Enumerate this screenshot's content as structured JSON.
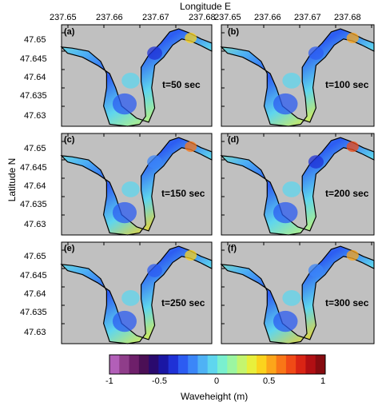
{
  "figure": {
    "top_axis_title": "Longitude E",
    "left_axis_title": "Latitude N",
    "longitude_ticks": [
      "237.65",
      "237.66",
      "237.67",
      "237.68"
    ],
    "latitude_ticks": [
      "47.65",
      "47.645",
      "47.64",
      "47.635",
      "47.63"
    ],
    "land_color": "#c0c0c0",
    "panels": [
      {
        "tag": "(a)",
        "time_label": "t=50 sec"
      },
      {
        "tag": "(b)",
        "time_label": "t=100 sec"
      },
      {
        "tag": "(c)",
        "time_label": "t=150 sec"
      },
      {
        "tag": "(d)",
        "time_label": "t=200 sec"
      },
      {
        "tag": "(e)",
        "time_label": "t=250 sec"
      },
      {
        "tag": "(f)",
        "time_label": "t=300 sec"
      }
    ],
    "colorbar": {
      "title": "Waveheight (m)",
      "ticks": [
        "-1",
        "-0.5",
        "0",
        "0.5",
        "1"
      ],
      "range": [
        -1,
        1
      ],
      "colors": [
        "#b25fb8",
        "#8f3d8a",
        "#6e1f6a",
        "#4b0f55",
        "#2a0a6e",
        "#1a16a3",
        "#1f31d6",
        "#2c5cf2",
        "#3b86f8",
        "#4fb2f5",
        "#5fd6ee",
        "#7af0cf",
        "#9cf6a1",
        "#c4f56f",
        "#e8ef3c",
        "#fbd31d",
        "#fca51a",
        "#f97617",
        "#f04a16",
        "#d92414",
        "#b10f13",
        "#860b10"
      ]
    }
  }
}
